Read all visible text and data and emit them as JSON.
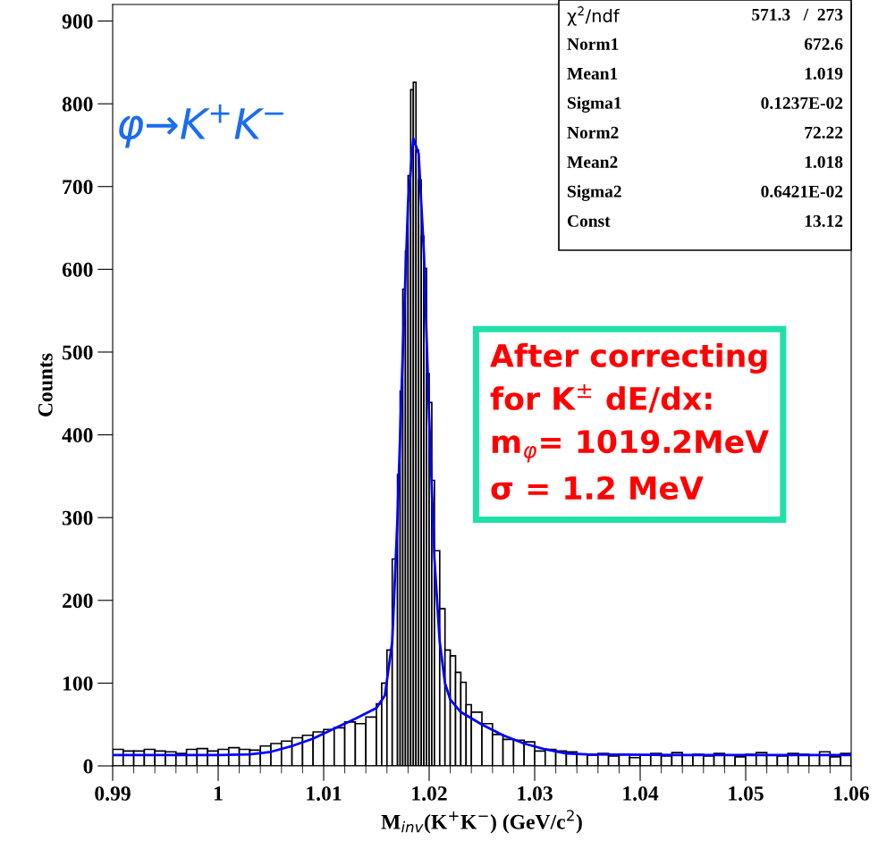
{
  "chart_data": {
    "type": "histogram",
    "xlabel": "M$_{inv}$(K$^{+}$K$^{−}$) (GeV/c$^{2}$)",
    "ylabel": "Counts",
    "annotations": [
      "φ→K$^{+}$K$^{−}$",
      "After correcting\nfor K$^{±}$ dE/dx:\nm$_{φ}$= 1019.2MeV\nσ = 1.2 MeV",
      "χ$^{2}$/ndf",
      "571.3   /  273",
      "Norm1",
      "672.6",
      "Mean1",
      "1.019",
      "Sigma1",
      "0.1237E-02",
      "Norm2",
      "72.22",
      "Mean2",
      "1.018",
      "Sigma2",
      "0.6421E-02",
      "Const",
      "13.12"
    ],
    "bins": [
      0.99,
      0.991,
      0.992,
      0.993,
      0.994,
      0.995,
      0.996,
      0.997,
      0.998,
      0.999,
      1.0,
      1.001,
      1.002,
      1.003,
      1.004,
      1.005,
      1.006,
      1.007,
      1.008,
      1.009,
      1.01,
      1.011,
      1.012,
      1.013,
      1.014,
      1.015,
      1.0155,
      1.016,
      1.0165,
      1.017,
      1.01725,
      1.0175,
      1.01775,
      1.018,
      1.01825,
      1.0185,
      1.01875,
      1.019,
      1.01925,
      1.0195,
      1.01975,
      1.02,
      1.02025,
      1.0205,
      1.021,
      1.0215,
      1.022,
      1.0225,
      1.023,
      1.0235,
      1.024,
      1.025,
      1.026,
      1.027,
      1.028,
      1.029,
      1.03,
      1.031,
      1.032,
      1.033,
      1.034,
      1.035,
      1.036,
      1.037,
      1.038,
      1.039,
      1.04,
      1.041,
      1.042,
      1.043,
      1.044,
      1.045,
      1.046,
      1.047,
      1.048,
      1.049,
      1.05,
      1.051,
      1.052,
      1.053,
      1.054,
      1.055,
      1.056,
      1.057,
      1.058,
      1.059,
      1.06
    ],
    "series": [
      {
        "color": "#000000",
        "values": [
          20,
          18,
          18,
          20,
          18,
          17,
          15,
          20,
          21,
          18,
          20,
          22,
          20,
          19,
          24,
          27,
          30,
          34,
          37,
          41,
          44,
          46,
          53,
          51,
          59,
          75,
          100,
          140,
          250,
          352,
          453,
          576,
          622,
          713,
          817,
          826,
          744,
          708,
          640,
          601,
          474,
          439,
          345,
          260,
          190,
          140,
          133,
          113,
          101,
          74,
          65,
          51,
          38,
          32,
          31,
          29,
          18,
          20,
          18,
          17,
          14,
          13,
          15,
          12,
          14,
          10,
          13,
          15,
          12,
          16,
          13,
          14,
          12,
          15,
          13,
          11,
          14,
          16,
          13,
          12,
          15,
          14,
          13,
          17,
          11,
          15
        ]
      },
      {
        "type": "line",
        "color": "#0000ff",
        "x": [
          0.99,
          1.0,
          1.003,
          1.005,
          1.007,
          1.009,
          1.011,
          1.013,
          1.015,
          1.0158,
          1.0165,
          1.017,
          1.0175,
          1.018,
          1.0185,
          1.019,
          1.0195,
          1.02,
          1.0205,
          1.021,
          1.0215,
          1.022,
          1.023,
          1.025,
          1.027,
          1.029,
          1.031,
          1.033,
          1.035,
          1.045,
          1.06
        ],
        "values": [
          13,
          13,
          14,
          17,
          24,
          33,
          45,
          57,
          70,
          85,
          150,
          300,
          500,
          680,
          758,
          740,
          620,
          420,
          250,
          150,
          100,
          80,
          65,
          50,
          37,
          27,
          20,
          15,
          14,
          13,
          13
        ]
      }
    ],
    "xlim": [
      0.99,
      1.06
    ],
    "xticks": [
      0.99,
      1,
      1.01,
      1.02,
      1.03,
      1.04,
      1.05,
      1.06
    ],
    "ylim": [
      0,
      920
    ],
    "yticks": [
      0,
      100,
      200,
      300,
      400,
      500,
      600,
      700,
      800,
      900
    ]
  }
}
